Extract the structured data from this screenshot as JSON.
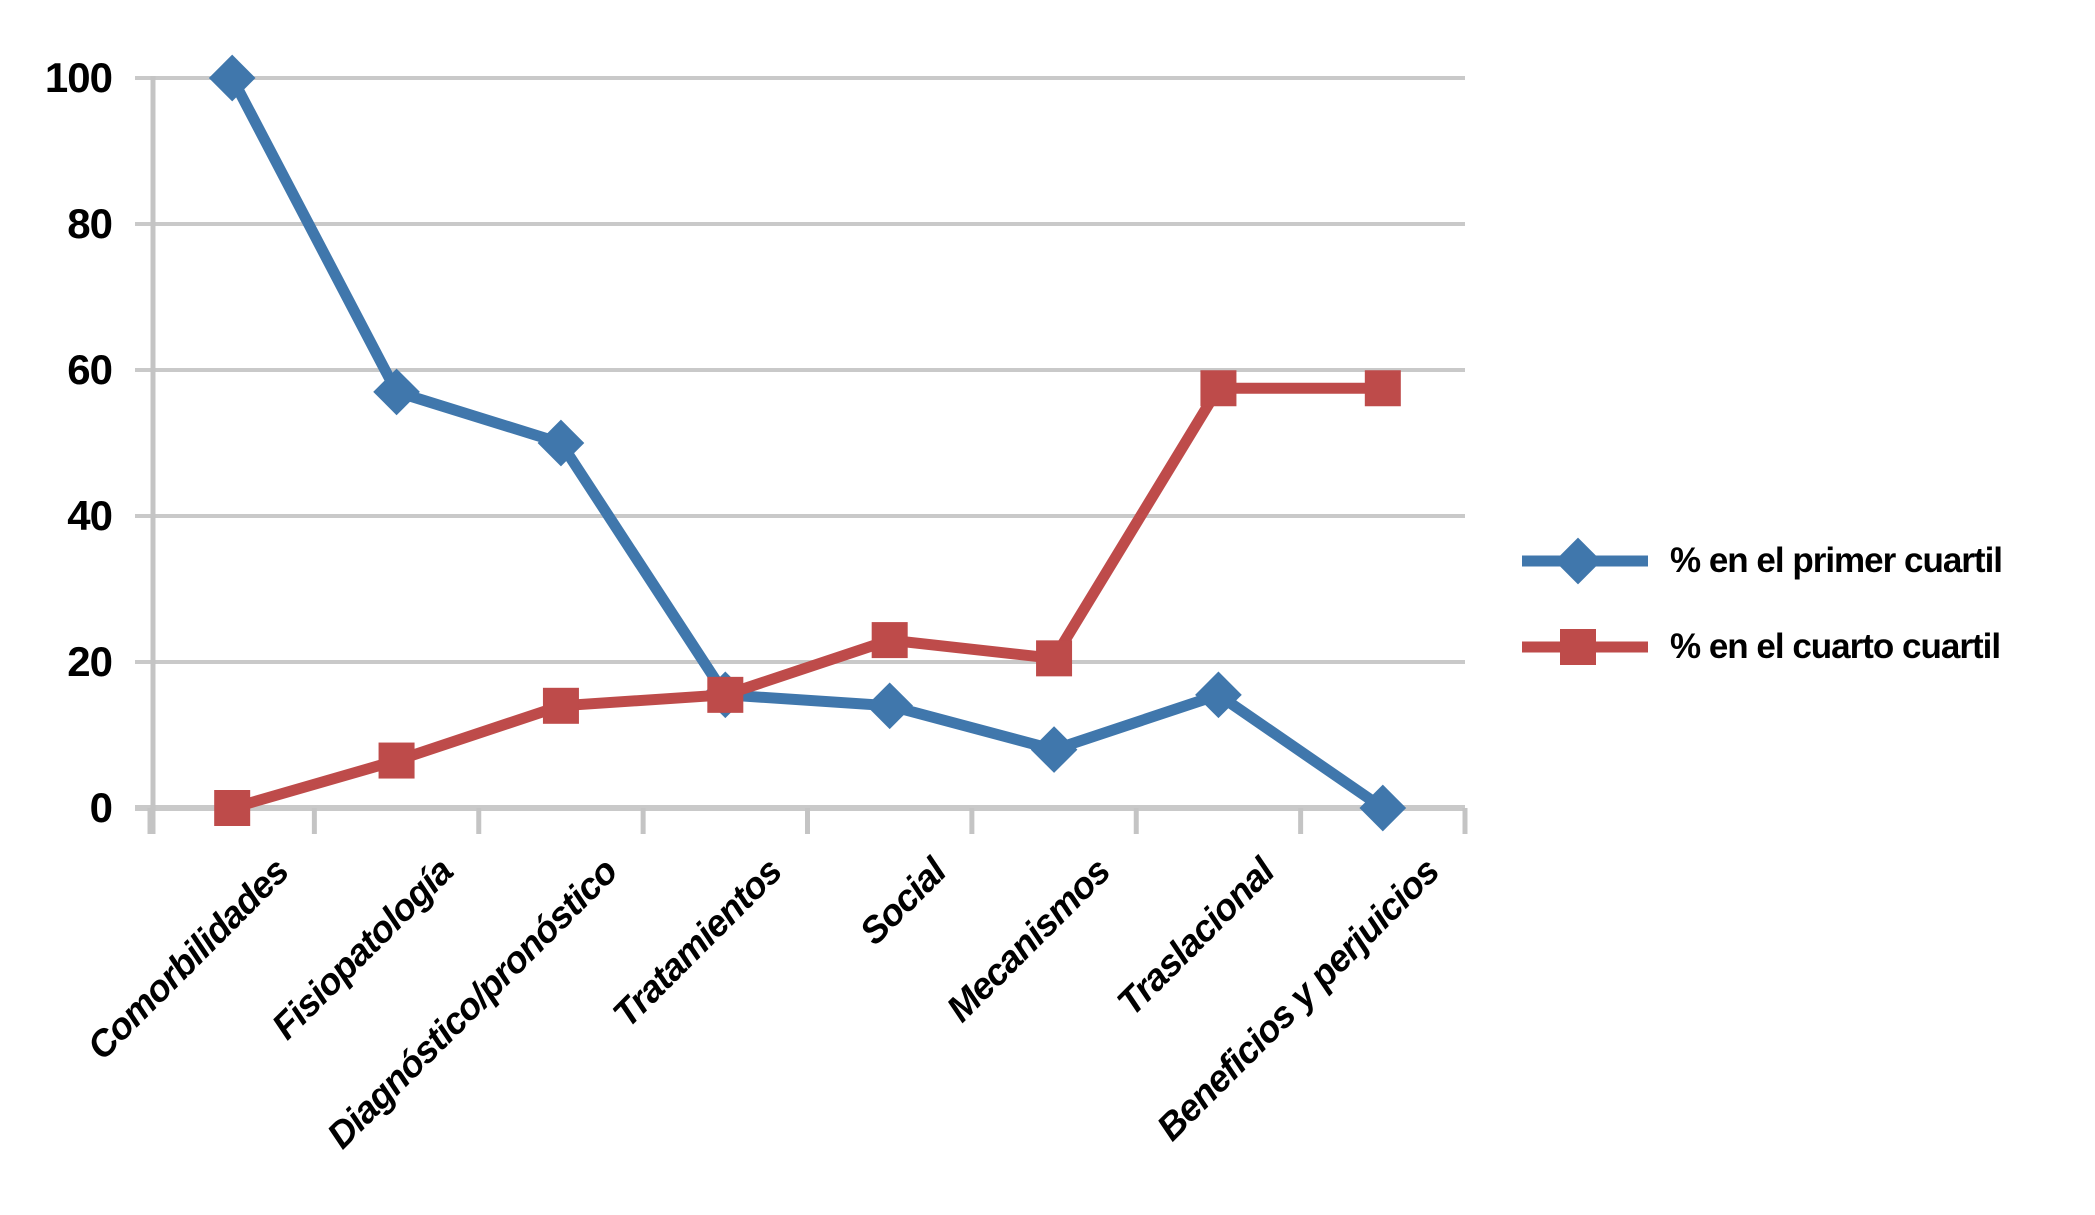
{
  "chart_data": {
    "type": "line",
    "categories": [
      "Comorbilidades",
      "Fisiopatología",
      "Diagnóstico/pronóstico",
      "Tratamientos",
      "Social",
      "Mecanismos",
      "Traslacional",
      "Beneficios y perjuicios"
    ],
    "series": [
      {
        "name": "% en el primer cuartil",
        "marker": "diamond",
        "color": "#4077AC",
        "values": [
          100,
          57,
          50,
          15.5,
          14,
          8,
          15.5,
          0
        ]
      },
      {
        "name": "% en el cuarto cuartil",
        "marker": "square",
        "color": "#BE4B4A",
        "values": [
          0,
          6.5,
          14,
          15.5,
          23,
          20.5,
          57.5,
          57.5
        ]
      }
    ],
    "title": "",
    "xlabel": "",
    "ylabel": "",
    "ylim": [
      0,
      100
    ],
    "yticks": [
      0,
      20,
      40,
      60,
      80,
      100
    ],
    "grid": "horizontal",
    "legend_position": "right",
    "colors": {
      "gridline": "#C9C9C9",
      "axis": "#C4C4C4",
      "label_text": "#000000",
      "background": "#FFFFFF"
    }
  }
}
